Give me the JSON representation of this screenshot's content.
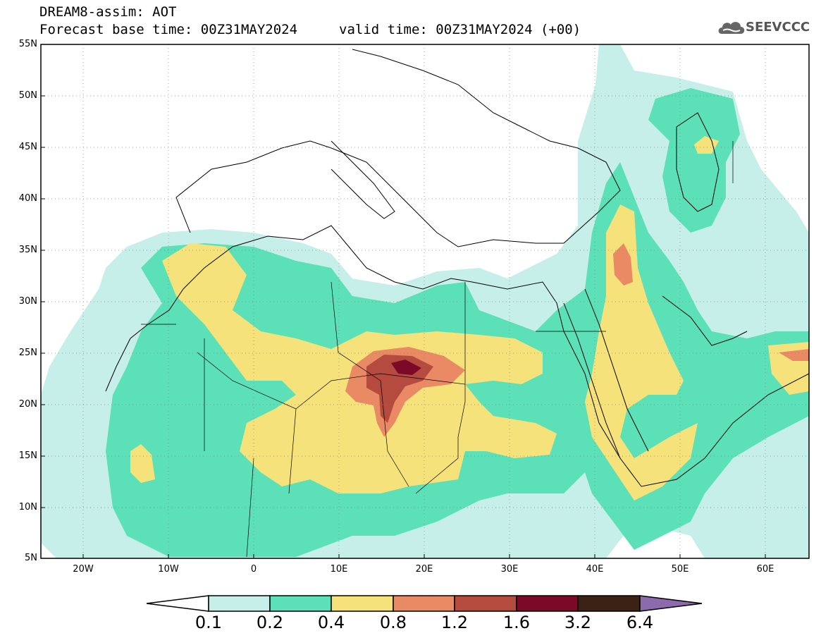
{
  "header": {
    "title": "DREAM8-assim: AOT",
    "base_time": "Forecast base time: 00Z31MAY2024",
    "valid_time": "valid time: 00Z31MAY2024 (+00)",
    "logo_text": "SEEVCCC"
  },
  "map": {
    "lat_labels": [
      "55N",
      "50N",
      "45N",
      "40N",
      "35N",
      "30N",
      "25N",
      "20N",
      "15N",
      "10N",
      "5N"
    ],
    "lon_labels": [
      "20W",
      "10W",
      "0",
      "10E",
      "20E",
      "30E",
      "40E",
      "50E",
      "60E"
    ],
    "lat_range": [
      5,
      55
    ],
    "lon_range": [
      -25,
      65
    ],
    "grid": "dotted"
  },
  "colorbar": {
    "labels": [
      "0.1",
      "0.2",
      "0.4",
      "0.8",
      "1.2",
      "1.6",
      "3.2",
      "6.4"
    ],
    "colors": [
      "#ffffff",
      "#c7efe9",
      "#5be0b7",
      "#f6e27a",
      "#e98a64",
      "#b54a3e",
      "#7b0927",
      "#3b2214",
      "#8d6aab"
    ]
  },
  "legend_colors": {
    "c01": "#c7efe9",
    "c02": "#5be0b7",
    "c04": "#f6e27a",
    "c08": "#e98a64",
    "c12": "#b54a3e",
    "c16": "#7b0927"
  }
}
